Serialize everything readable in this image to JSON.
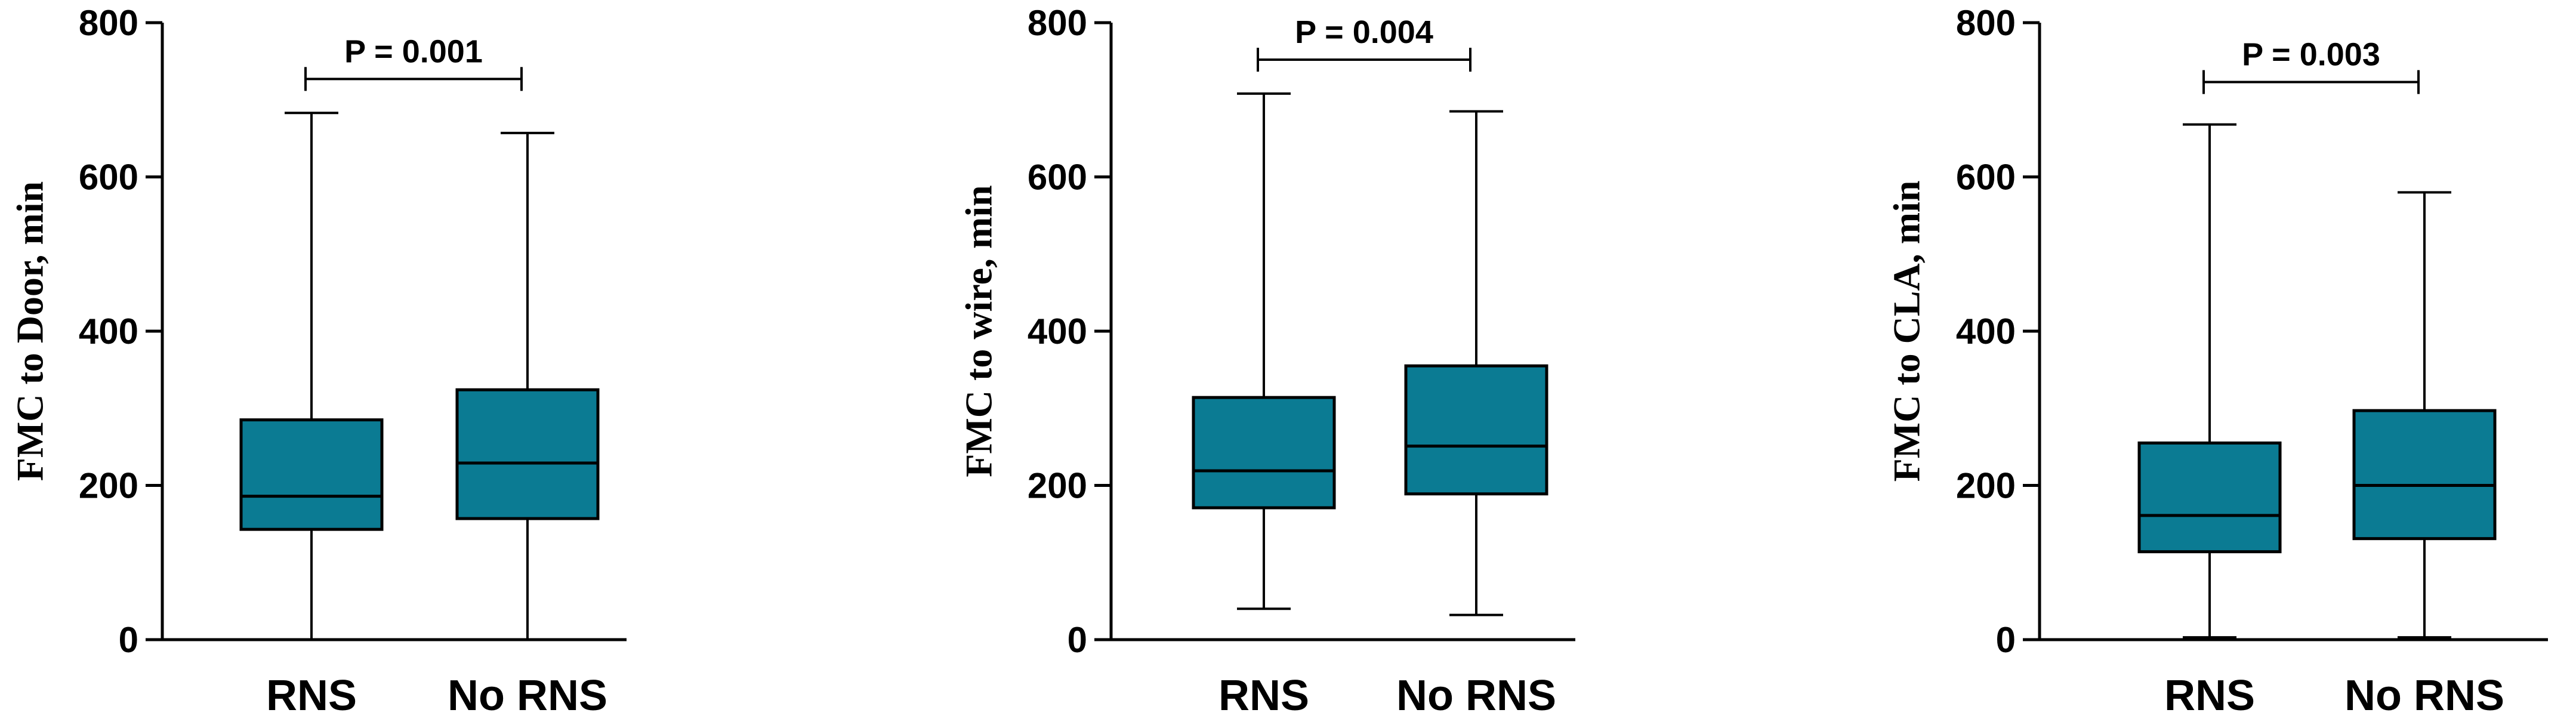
{
  "chart_data": [
    {
      "type": "box",
      "ylabel": "FMC to Door, min",
      "ylim": [
        0,
        800
      ],
      "yticks": [
        0,
        200,
        400,
        600,
        800
      ],
      "categories": [
        "RNS",
        "No RNS"
      ],
      "boxes": [
        {
          "min": 0,
          "q1": 143,
          "median": 186,
          "q3": 285,
          "max": 683
        },
        {
          "min": 0,
          "q1": 157,
          "median": 229,
          "q3": 324,
          "max": 657
        }
      ],
      "annotation": "P = 0.001",
      "annotation_y": 727,
      "color": "#0b7b93"
    },
    {
      "type": "box",
      "ylabel": "FMC to wire, min",
      "ylim": [
        0,
        800
      ],
      "yticks": [
        0,
        200,
        400,
        600,
        800
      ],
      "categories": [
        "RNS",
        "No RNS"
      ],
      "boxes": [
        {
          "min": 40,
          "q1": 171,
          "median": 219,
          "q3": 314,
          "max": 708
        },
        {
          "min": 32,
          "q1": 189,
          "median": 251,
          "q3": 355,
          "max": 685
        }
      ],
      "annotation": "P = 0.004",
      "annotation_y": 752,
      "color": "#0b7b93"
    },
    {
      "type": "box",
      "ylabel": "FMC to CLA, min",
      "ylim": [
        0,
        800
      ],
      "yticks": [
        0,
        200,
        400,
        600,
        800
      ],
      "categories": [
        "RNS",
        "No RNS"
      ],
      "boxes": [
        {
          "min": 3,
          "q1": 114,
          "median": 161,
          "q3": 255,
          "max": 668
        },
        {
          "min": 3,
          "q1": 131,
          "median": 200,
          "q3": 297,
          "max": 580
        }
      ],
      "annotation": "P = 0.003",
      "annotation_y": 723,
      "color": "#0b7b93"
    }
  ]
}
